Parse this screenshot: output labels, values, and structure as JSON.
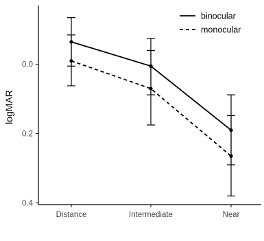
{
  "chart_data": {
    "type": "line",
    "title": "",
    "xlabel": "",
    "ylabel": "logMAR",
    "y_axis_reversed": true,
    "ylim": [
      -0.17,
      0.405
    ],
    "yticks": [
      0.0,
      0.2,
      0.4
    ],
    "ytick_labels": [
      "0.0",
      "0.2",
      "0.4"
    ],
    "categories": [
      "Distance",
      "Intermediate",
      "Near"
    ],
    "grid": false,
    "legend_position": "top-right",
    "series": [
      {
        "name": "binocular",
        "line_style": "solid",
        "values": [
          -0.065,
          0.005,
          0.19
        ],
        "error_low": [
          -0.135,
          -0.075,
          0.088
        ],
        "error_high": [
          0.005,
          0.088,
          0.29
        ]
      },
      {
        "name": "monocular",
        "line_style": "dashed",
        "values": [
          -0.01,
          0.07,
          0.265
        ],
        "error_low": [
          -0.085,
          -0.04,
          0.148
        ],
        "error_high": [
          0.062,
          0.175,
          0.38
        ]
      }
    ],
    "colors": {
      "line": "#000000",
      "axis": "#000000",
      "tick_text": "#4d4d4d"
    }
  }
}
